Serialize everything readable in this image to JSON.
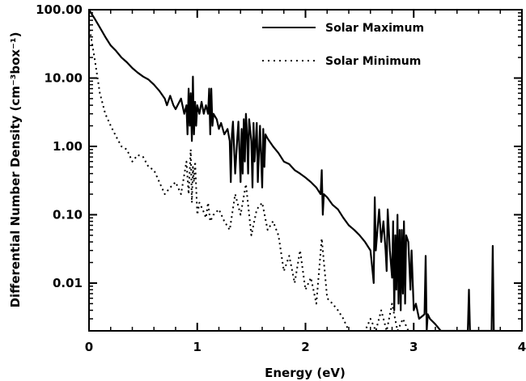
{
  "chart_data": {
    "type": "line",
    "xlabel": "Energy (eV)",
    "ylabel": "Differential Number Density (cm⁻³box⁻¹)",
    "xlim": [
      0,
      4
    ],
    "ylim": [
      0.002,
      100
    ],
    "y_scale": "log",
    "grid": false,
    "legend_position": "top-right",
    "x_ticks": [
      0,
      1,
      2,
      3,
      4
    ],
    "x_tick_labels": [
      "0",
      "1",
      "2",
      "3",
      "4"
    ],
    "y_ticks": [
      0.01,
      0.1,
      1,
      10,
      100
    ],
    "y_tick_labels": [
      "0.01",
      "0.10",
      "1.00",
      "10.00",
      "100.00"
    ],
    "series": [
      {
        "name": "Solar Maximum",
        "style": "solid",
        "color": "#000000",
        "x": [
          0.0,
          0.05,
          0.1,
          0.15,
          0.2,
          0.25,
          0.3,
          0.35,
          0.4,
          0.45,
          0.5,
          0.55,
          0.6,
          0.65,
          0.7,
          0.72,
          0.75,
          0.78,
          0.8,
          0.85,
          0.88,
          0.9,
          0.91,
          0.92,
          0.93,
          0.94,
          0.95,
          0.96,
          0.97,
          0.98,
          0.99,
          1.0,
          1.02,
          1.04,
          1.06,
          1.08,
          1.1,
          1.11,
          1.12,
          1.13,
          1.14,
          1.15,
          1.18,
          1.2,
          1.22,
          1.25,
          1.28,
          1.3,
          1.31,
          1.32,
          1.33,
          1.35,
          1.37,
          1.38,
          1.4,
          1.41,
          1.42,
          1.43,
          1.44,
          1.45,
          1.46,
          1.47,
          1.48,
          1.5,
          1.51,
          1.52,
          1.53,
          1.55,
          1.56,
          1.58,
          1.6,
          1.61,
          1.62,
          1.63,
          1.65,
          1.7,
          1.75,
          1.8,
          1.85,
          1.9,
          1.95,
          2.0,
          2.05,
          2.1,
          2.14,
          2.15,
          2.16,
          2.17,
          2.2,
          2.25,
          2.3,
          2.35,
          2.4,
          2.45,
          2.5,
          2.55,
          2.6,
          2.62,
          2.63,
          2.64,
          2.65,
          2.68,
          2.7,
          2.72,
          2.74,
          2.75,
          2.76,
          2.78,
          2.8,
          2.81,
          2.82,
          2.83,
          2.84,
          2.85,
          2.86,
          2.87,
          2.88,
          2.89,
          2.9,
          2.91,
          2.92,
          2.93,
          2.95,
          2.97,
          2.98,
          3.0,
          3.02,
          3.05,
          3.1,
          3.11,
          3.12,
          3.13,
          3.15,
          3.2,
          3.25,
          3.3,
          3.35,
          3.4,
          3.45,
          3.5,
          3.51,
          3.52,
          3.55,
          3.6,
          3.65,
          3.7,
          3.72,
          3.73,
          3.74,
          3.76,
          3.8
        ],
        "y": [
          100,
          75,
          55,
          40,
          30,
          25,
          20,
          17,
          14,
          12,
          10.5,
          9.5,
          8,
          6.5,
          5,
          4,
          5.5,
          4,
          3.5,
          5,
          3,
          4,
          1.5,
          7,
          2,
          6,
          1.2,
          10.5,
          1.5,
          4.5,
          2,
          4,
          3,
          4.5,
          3,
          4,
          3,
          7,
          1.5,
          7,
          2,
          3,
          2.5,
          1.8,
          2.2,
          1.5,
          1.8,
          1.2,
          0.3,
          1.5,
          2.3,
          0.4,
          1.3,
          2.3,
          0.3,
          1.8,
          0.4,
          2.5,
          0.6,
          3,
          1.5,
          0.4,
          2.5,
          1.2,
          0.25,
          2.2,
          0.6,
          2.2,
          0.3,
          2,
          0.25,
          1.8,
          0.5,
          1.5,
          1.3,
          1.0,
          0.8,
          0.6,
          0.55,
          0.45,
          0.4,
          0.35,
          0.3,
          0.25,
          0.2,
          0.45,
          0.1,
          0.2,
          0.18,
          0.14,
          0.12,
          0.09,
          0.07,
          0.06,
          0.05,
          0.04,
          0.03,
          0.015,
          0.01,
          0.18,
          0.03,
          0.12,
          0.04,
          0.08,
          0.03,
          0.015,
          0.12,
          0.03,
          0.012,
          0.08,
          0.004,
          0.05,
          0.008,
          0.1,
          0.005,
          0.06,
          0.004,
          0.06,
          0.007,
          0.08,
          0.005,
          0.05,
          0.04,
          0.008,
          0.03,
          0.004,
          0.005,
          0.003,
          0.0035,
          0.025,
          0.002,
          0.0035,
          0.003,
          0.0025,
          0.002,
          0.002,
          0.002,
          0.002,
          0.002,
          0.002,
          0.008,
          0.002,
          0.002,
          0.002,
          0.002,
          0.002,
          0.002,
          0.035,
          0.002,
          0.002,
          0.002
        ]
      },
      {
        "name": "Solar Minimum",
        "style": "dotted",
        "color": "#000000",
        "x": [
          0.0,
          0.05,
          0.1,
          0.15,
          0.2,
          0.25,
          0.3,
          0.35,
          0.4,
          0.45,
          0.5,
          0.55,
          0.6,
          0.65,
          0.7,
          0.75,
          0.8,
          0.85,
          0.9,
          0.92,
          0.94,
          0.95,
          0.96,
          0.97,
          0.98,
          1.0,
          1.02,
          1.05,
          1.08,
          1.1,
          1.12,
          1.15,
          1.2,
          1.25,
          1.3,
          1.35,
          1.4,
          1.45,
          1.5,
          1.55,
          1.6,
          1.65,
          1.7,
          1.75,
          1.8,
          1.85,
          1.9,
          1.95,
          2.0,
          2.05,
          2.1,
          2.15,
          2.2,
          2.25,
          2.3,
          2.35,
          2.4,
          2.45,
          2.5,
          2.55,
          2.6,
          2.65,
          2.7,
          2.75,
          2.8,
          2.85,
          2.9,
          2.95,
          3.0
        ],
        "y": [
          60,
          20,
          6,
          3,
          2,
          1.4,
          1.0,
          0.9,
          0.6,
          0.75,
          0.7,
          0.5,
          0.45,
          0.3,
          0.2,
          0.25,
          0.3,
          0.2,
          0.6,
          0.2,
          0.9,
          0.15,
          0.5,
          0.3,
          0.6,
          0.1,
          0.15,
          0.12,
          0.09,
          0.15,
          0.08,
          0.1,
          0.12,
          0.08,
          0.06,
          0.2,
          0.1,
          0.28,
          0.05,
          0.12,
          0.15,
          0.06,
          0.08,
          0.05,
          0.015,
          0.025,
          0.01,
          0.03,
          0.008,
          0.012,
          0.005,
          0.045,
          0.006,
          0.005,
          0.004,
          0.003,
          0.002,
          0.002,
          0.002,
          0.002,
          0.003,
          0.002,
          0.004,
          0.002,
          0.005,
          0.002,
          0.003,
          0.002,
          0.002
        ]
      }
    ]
  }
}
